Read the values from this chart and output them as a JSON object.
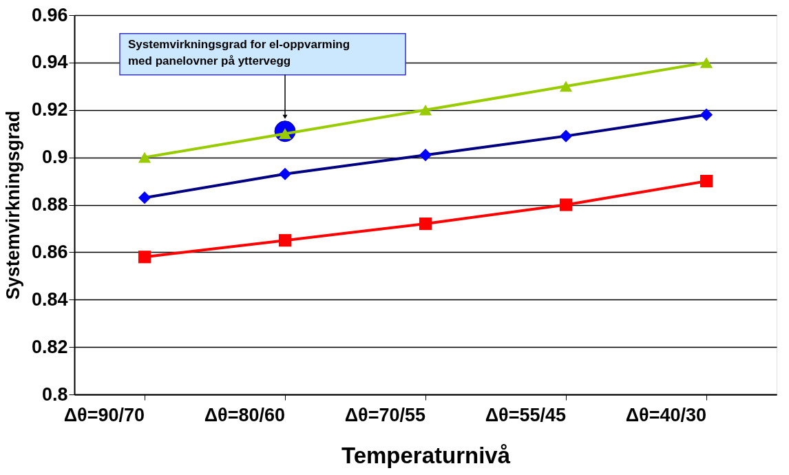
{
  "chart_data": {
    "type": "line",
    "xlabel": "Temperaturnivå",
    "ylabel": "Systemvirkningsgrad",
    "categories": [
      "Δθ=90/70",
      "Δθ=80/60",
      "Δθ=70/55",
      "Δθ=55/45",
      "Δθ=40/30"
    ],
    "series": [
      {
        "color": "#99cc00",
        "marker": "triangle",
        "values": [
          0.9,
          0.91,
          0.92,
          0.93,
          0.94
        ]
      },
      {
        "color": "#000080",
        "marker": "diamond",
        "values": [
          0.883,
          0.893,
          0.901,
          0.909,
          0.918
        ]
      },
      {
        "color": "#ff0000",
        "marker": "square",
        "values": [
          0.858,
          0.865,
          0.872,
          0.88,
          0.89
        ]
      },
      {
        "type": "scatter",
        "color": "#0000ff",
        "marker": "circle",
        "x": [
          "Δθ=80/60"
        ],
        "values": [
          0.911
        ]
      }
    ],
    "annotations": [
      "Systemvirkningsgrad for el-oppvarming\nmed panelovner på yttervegg"
    ],
    "ylim": [
      0.8,
      0.96
    ],
    "yticks": [
      0.8,
      0.82,
      0.84,
      0.86,
      0.88,
      0.9,
      0.92,
      0.94,
      0.96
    ],
    "grid": "y",
    "line_style": "solid"
  }
}
